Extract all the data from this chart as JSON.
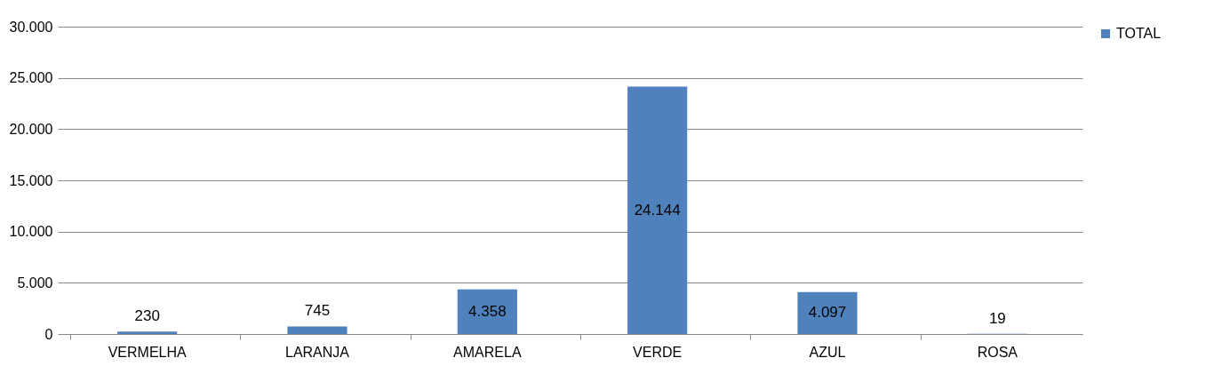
{
  "chart_data": {
    "type": "bar",
    "categories": [
      "VERMELHA",
      "LARANJA",
      "AMARELA",
      "VERDE",
      "AZUL",
      "ROSA"
    ],
    "series": [
      {
        "name": "TOTAL",
        "color": "#4f81bd",
        "values": [
          230,
          745,
          4358,
          24144,
          4097,
          19
        ],
        "value_labels": [
          "230",
          "745",
          "4.358",
          "24.144",
          "4.097",
          "19"
        ]
      }
    ],
    "ylim": [
      0,
      30000
    ],
    "yticks": [
      {
        "value": 0,
        "label": "0"
      },
      {
        "value": 5000,
        "label": "5.000"
      },
      {
        "value": 10000,
        "label": "10.000"
      },
      {
        "value": 15000,
        "label": "15.000"
      },
      {
        "value": 20000,
        "label": "20.000"
      },
      {
        "value": 25000,
        "label": "25.000"
      },
      {
        "value": 30000,
        "label": "30.000"
      }
    ],
    "grid": "y",
    "legend": "right"
  }
}
